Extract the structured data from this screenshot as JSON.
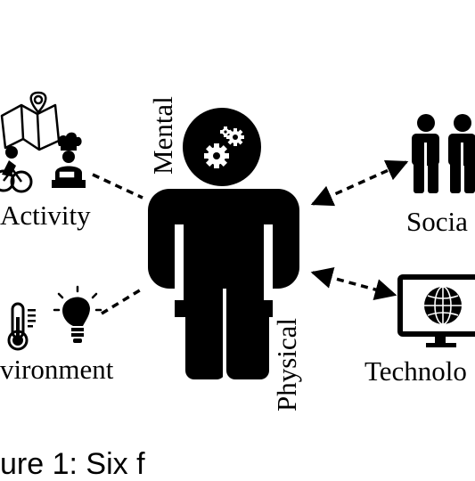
{
  "figure": {
    "center_labels": {
      "mental": "Mental",
      "physical": "Physical"
    },
    "nodes": {
      "activity": "Activity",
      "environment": "vironment",
      "social": "Socia",
      "technology": "Technolo"
    },
    "caption": "ure 1: Six                                          f"
  },
  "icons": [
    "map-icon",
    "cyclist-icon",
    "chef-icon",
    "thermometer-icon",
    "lightbulb-icon",
    "gears-icon",
    "person-icon",
    "people-icon",
    "globe-monitor-icon"
  ]
}
